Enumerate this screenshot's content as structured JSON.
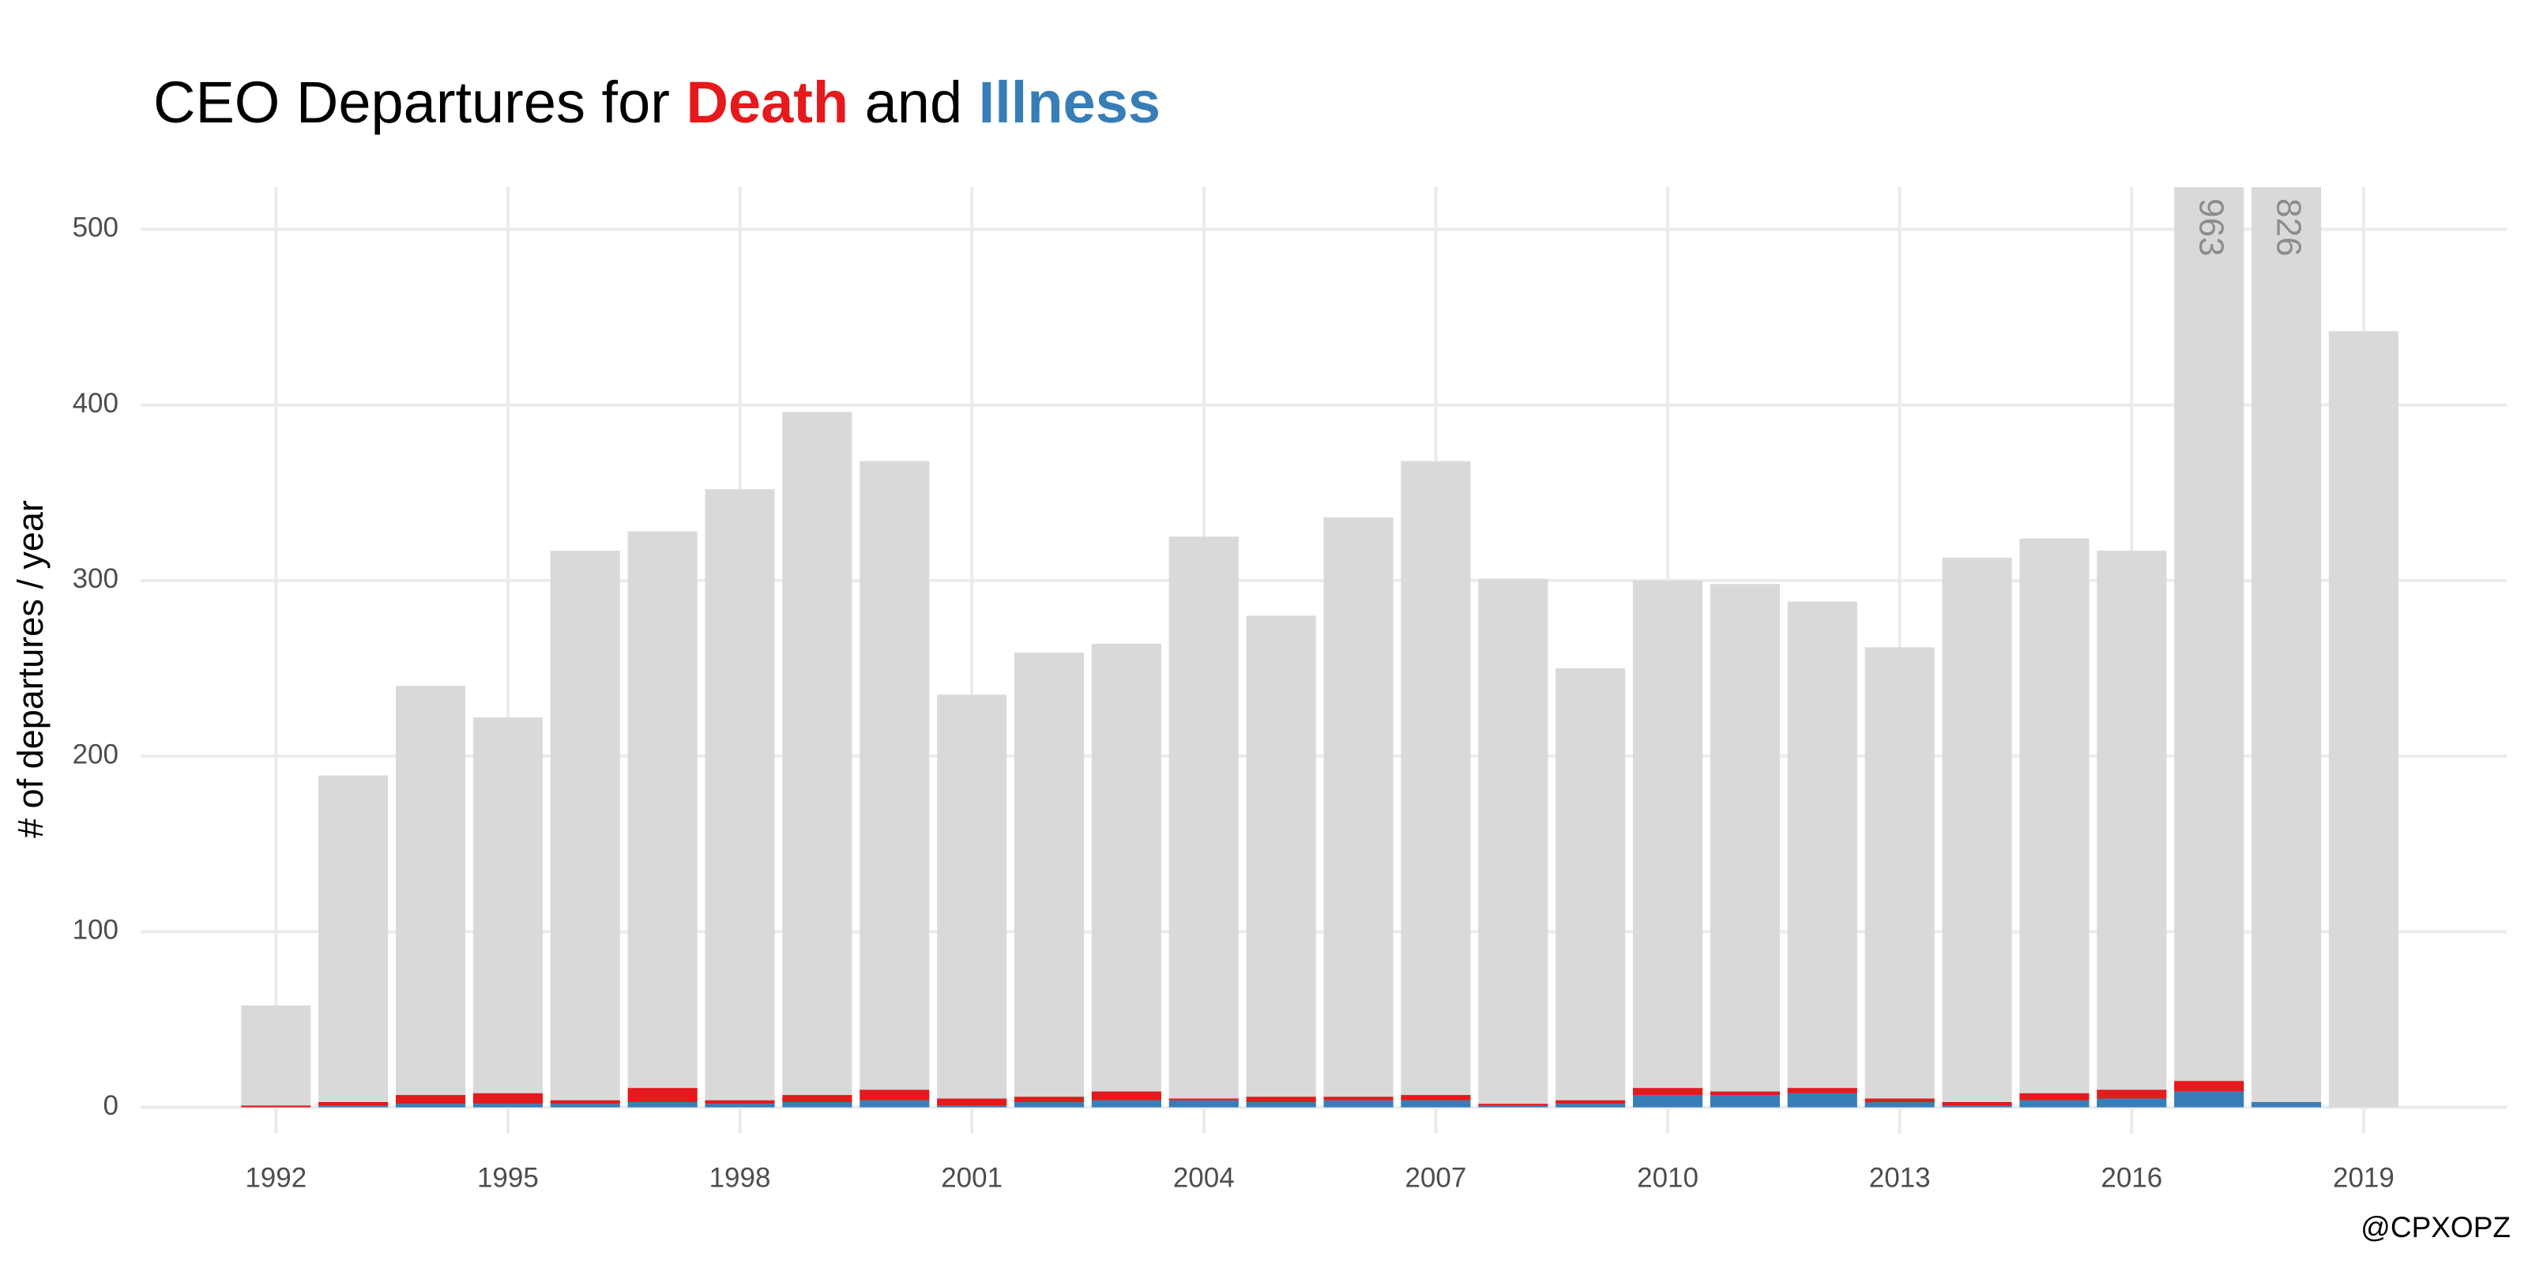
{
  "chart_data": {
    "type": "bar",
    "title_prefix": "CEO Departures for",
    "title_join": "and",
    "ylabel": "# of departures / year",
    "caption": "@CPXOPZ",
    "x": [
      1992,
      1993,
      1994,
      1995,
      1996,
      1997,
      1998,
      1999,
      2000,
      2001,
      2002,
      2003,
      2004,
      2005,
      2006,
      2007,
      2008,
      2009,
      2010,
      2011,
      2012,
      2013,
      2014,
      2015,
      2016,
      2017,
      2018,
      2019
    ],
    "total": {
      "color": "#d9d9d9",
      "label_color": "#8c8c8c",
      "values": [
        58,
        189,
        240,
        222,
        317,
        328,
        352,
        396,
        368,
        235,
        259,
        264,
        325,
        280,
        336,
        368,
        301,
        250,
        300,
        298,
        288,
        262,
        313,
        324,
        317,
        963,
        826,
        442
      ]
    },
    "series": [
      {
        "name": "Illness",
        "color": "#377eb8",
        "values": [
          0,
          1,
          2,
          2,
          2,
          3,
          2,
          3,
          4,
          1,
          3,
          4,
          4,
          3,
          4,
          4,
          1,
          2,
          7,
          7,
          8,
          3,
          1,
          4,
          5,
          9,
          3,
          0
        ]
      },
      {
        "name": "Death",
        "color": "#e41a1c",
        "values": [
          1,
          2,
          5,
          6,
          2,
          8,
          2,
          4,
          6,
          4,
          3,
          5,
          1,
          3,
          2,
          3,
          1,
          2,
          4,
          2,
          3,
          2,
          2,
          4,
          5,
          6,
          0,
          0
        ]
      }
    ],
    "xlim": [
      1990.25,
      2020.85
    ],
    "xticks": [
      1992,
      1995,
      1998,
      2001,
      2004,
      2007,
      2010,
      2013,
      2016,
      2019
    ],
    "ylim": [
      -15,
      524
    ],
    "yticks": [
      0,
      100,
      200,
      300,
      400,
      500
    ],
    "grid": true
  }
}
